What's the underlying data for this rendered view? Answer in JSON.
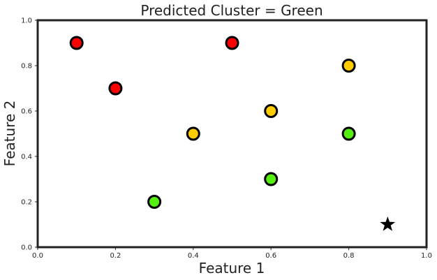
{
  "chart_data": {
    "type": "scatter",
    "title": "Predicted Cluster = Green",
    "xlabel": "Feature 1",
    "ylabel": "Feature 2",
    "xlim": [
      0.0,
      1.0
    ],
    "ylim": [
      0.0,
      1.0
    ],
    "xticks": [
      "0.0",
      "0.2",
      "0.4",
      "0.6",
      "0.8",
      "1.0"
    ],
    "yticks": [
      "0.0",
      "0.2",
      "0.4",
      "0.6",
      "0.8",
      "1.0"
    ],
    "grid": false,
    "colors": {
      "red": "#ff0000",
      "yellow": "#ffcc00",
      "green": "#55ee11",
      "marker_edge": "#000000",
      "axes": "#222222"
    },
    "points": [
      {
        "x": 0.1,
        "y": 0.9,
        "color": "red"
      },
      {
        "x": 0.5,
        "y": 0.9,
        "color": "red"
      },
      {
        "x": 0.2,
        "y": 0.7,
        "color": "red"
      },
      {
        "x": 0.8,
        "y": 0.8,
        "color": "yellow"
      },
      {
        "x": 0.6,
        "y": 0.6,
        "color": "yellow"
      },
      {
        "x": 0.4,
        "y": 0.5,
        "color": "yellow"
      },
      {
        "x": 0.8,
        "y": 0.5,
        "color": "green"
      },
      {
        "x": 0.6,
        "y": 0.3,
        "color": "green"
      },
      {
        "x": 0.3,
        "y": 0.2,
        "color": "green"
      }
    ],
    "query_point": {
      "x": 0.9,
      "y": 0.1,
      "marker": "star",
      "color": "#000000"
    }
  }
}
